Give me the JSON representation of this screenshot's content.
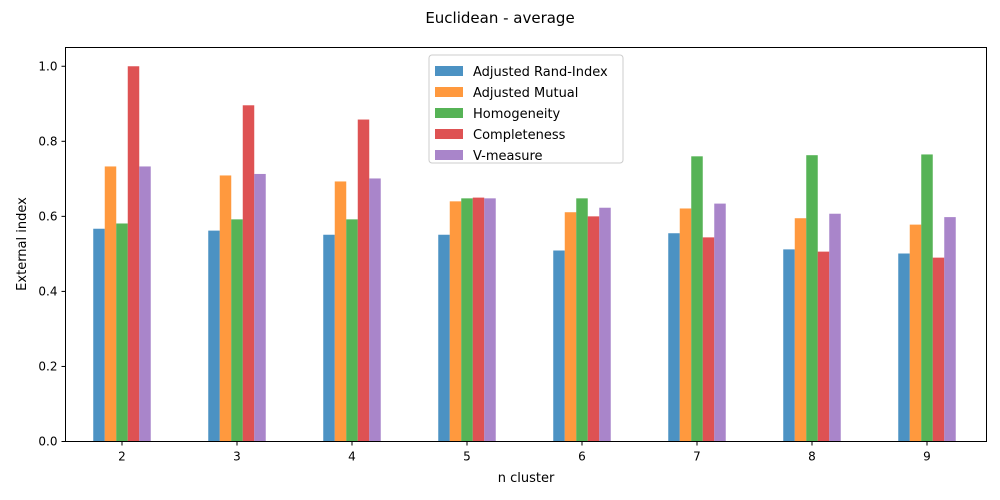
{
  "chart_data": {
    "type": "bar",
    "title": "Euclidean - average",
    "xlabel": "n cluster",
    "ylabel": "External index",
    "ylim": [
      0,
      1.05
    ],
    "yticks": [
      "0.0",
      "0.2",
      "0.4",
      "0.6",
      "0.8",
      "1.0"
    ],
    "categories": [
      "2",
      "3",
      "4",
      "5",
      "6",
      "7",
      "8",
      "9"
    ],
    "legend_position": "top-center",
    "grid": false,
    "series": [
      {
        "name": "Adjusted Rand-Index",
        "color": "#1f77b4",
        "values": [
          0.567,
          0.562,
          0.551,
          0.551,
          0.509,
          0.555,
          0.512,
          0.501
        ]
      },
      {
        "name": "Adjusted Mutual",
        "color": "#ff7f0e",
        "values": [
          0.733,
          0.709,
          0.693,
          0.64,
          0.611,
          0.621,
          0.595,
          0.578
        ]
      },
      {
        "name": "Homogeneity",
        "color": "#2ca02c",
        "values": [
          0.581,
          0.592,
          0.592,
          0.648,
          0.648,
          0.76,
          0.763,
          0.765
        ]
      },
      {
        "name": "Completeness",
        "color": "#d62728",
        "values": [
          1.0,
          0.896,
          0.858,
          0.65,
          0.6,
          0.544,
          0.506,
          0.49
        ]
      },
      {
        "name": "V-measure",
        "color": "#9467bd",
        "values": [
          0.733,
          0.713,
          0.701,
          0.648,
          0.623,
          0.634,
          0.607,
          0.598
        ]
      }
    ]
  }
}
